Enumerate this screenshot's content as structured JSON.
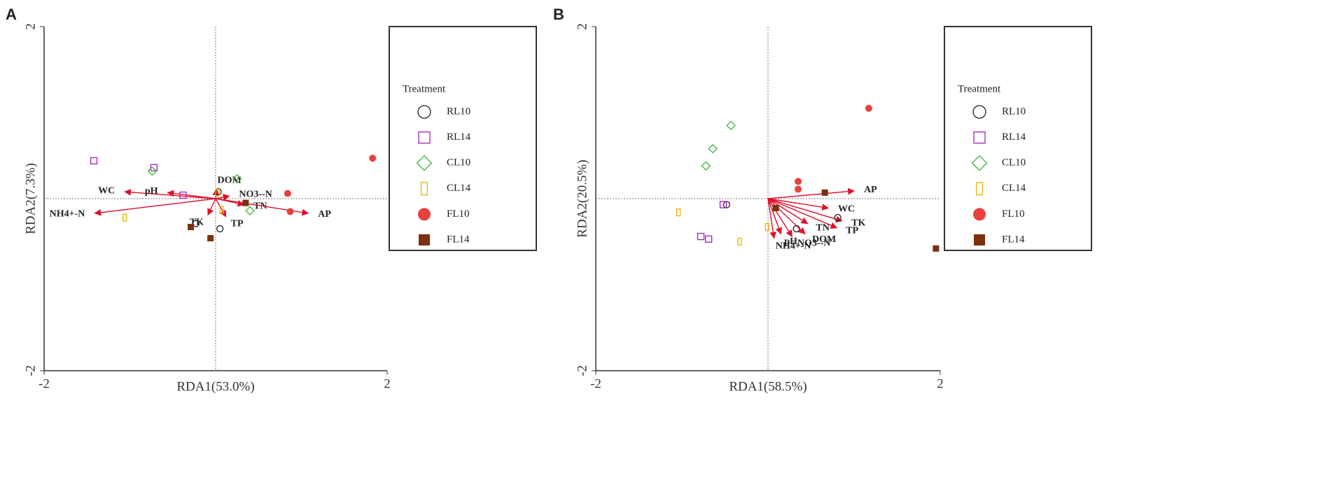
{
  "chart_data": [
    {
      "type": "biplot",
      "panel": "A",
      "xlabel": "RDA1(53.0%)",
      "ylabel": "RDA2(7.3%)",
      "xlim": [
        -2,
        2
      ],
      "ylim": [
        -2,
        2
      ],
      "xticks": [
        -2,
        2
      ],
      "yticks": [
        -2,
        2
      ],
      "legend_title": "Treatment",
      "series": [
        {
          "name": "RL10",
          "color": "#222222",
          "marker": "circle-open",
          "x": [
            -0.23,
            0.05,
            0.03
          ],
          "y": [
            -0.29,
            -0.35,
            0.08
          ]
        },
        {
          "name": "RL14",
          "color": "#a020c0",
          "marker": "square-open",
          "x": [
            -1.42,
            -0.72,
            -0.38
          ],
          "y": [
            0.44,
            0.36,
            0.04
          ]
        },
        {
          "name": "CL10",
          "color": "#3cb43c",
          "marker": "diamond-open",
          "x": [
            -0.74,
            0.25,
            0.4
          ],
          "y": [
            0.32,
            0.23,
            -0.14
          ]
        },
        {
          "name": "CL14",
          "color": "#f0b400",
          "marker": "bar-open",
          "x": [
            -1.06,
            0.07,
            0.02
          ],
          "y": [
            -0.22,
            -0.13,
            0.07
          ]
        },
        {
          "name": "FL10",
          "color": "#e8403c",
          "marker": "circle",
          "x": [
            1.83,
            0.84,
            0.87
          ],
          "y": [
            0.47,
            0.06,
            -0.15
          ]
        },
        {
          "name": "FL14",
          "color": "#7b3010",
          "marker": "square",
          "x": [
            -0.29,
            -0.06,
            0.35
          ],
          "y": [
            -0.33,
            -0.46,
            -0.05
          ]
        }
      ],
      "arrows": {
        "color": "#e0102a",
        "labels": [
          "WC",
          "pH",
          "DOM",
          "NO3--N",
          "NH4+-N",
          "TK",
          "TP",
          "TN",
          "AP"
        ],
        "x": [
          -1.06,
          -0.56,
          0.01,
          0.16,
          -1.41,
          -0.09,
          0.12,
          0.33,
          1.08
        ],
        "y": [
          0.08,
          0.07,
          0.11,
          0.03,
          -0.17,
          -0.19,
          -0.21,
          -0.07,
          -0.17
        ]
      }
    },
    {
      "type": "biplot",
      "panel": "B",
      "xlabel": "RDA1(58.5%)",
      "ylabel": "RDA2(20.5%)",
      "xlim": [
        -2,
        2
      ],
      "ylim": [
        -2,
        2
      ],
      "xticks": [
        -2,
        2
      ],
      "yticks": [
        -2,
        2
      ],
      "legend_title": "Treatment",
      "series": [
        {
          "name": "RL10",
          "color": "#222222",
          "marker": "circle-open",
          "x": [
            -0.48,
            0.81,
            0.33
          ],
          "y": [
            -0.07,
            -0.22,
            -0.35
          ]
        },
        {
          "name": "RL14",
          "color": "#a020c0",
          "marker": "square-open",
          "x": [
            -0.52,
            -0.78,
            -0.69
          ],
          "y": [
            -0.07,
            -0.44,
            -0.47
          ]
        },
        {
          "name": "CL10",
          "color": "#3cb43c",
          "marker": "diamond-open",
          "x": [
            -0.43,
            -0.64,
            -0.72
          ],
          "y": [
            0.85,
            0.58,
            0.38
          ]
        },
        {
          "name": "CL14",
          "color": "#f0b400",
          "marker": "bar-open",
          "x": [
            -1.04,
            -0.33,
            -0.01
          ],
          "y": [
            -0.16,
            -0.5,
            -0.33
          ]
        },
        {
          "name": "FL10",
          "color": "#e8403c",
          "marker": "circle",
          "x": [
            1.17,
            0.35,
            0.35
          ],
          "y": [
            1.05,
            0.2,
            0.11
          ]
        },
        {
          "name": "FL14",
          "color": "#7b3010",
          "marker": "square",
          "x": [
            0.66,
            0.09,
            1.95
          ],
          "y": [
            0.07,
            -0.11,
            -0.58
          ]
        }
      ],
      "arrows": {
        "color": "#e0102a",
        "labels": [
          "AP",
          "WC",
          "TK",
          "TP",
          "TN",
          "DOM",
          "pH",
          "NH4+-N",
          "NO3--N"
        ],
        "x": [
          1.0,
          0.7,
          0.86,
          0.8,
          0.46,
          0.43,
          0.15,
          0.07,
          0.28
        ],
        "y": [
          0.09,
          -0.11,
          -0.26,
          -0.34,
          -0.29,
          -0.41,
          -0.41,
          -0.46,
          -0.44
        ]
      }
    }
  ]
}
